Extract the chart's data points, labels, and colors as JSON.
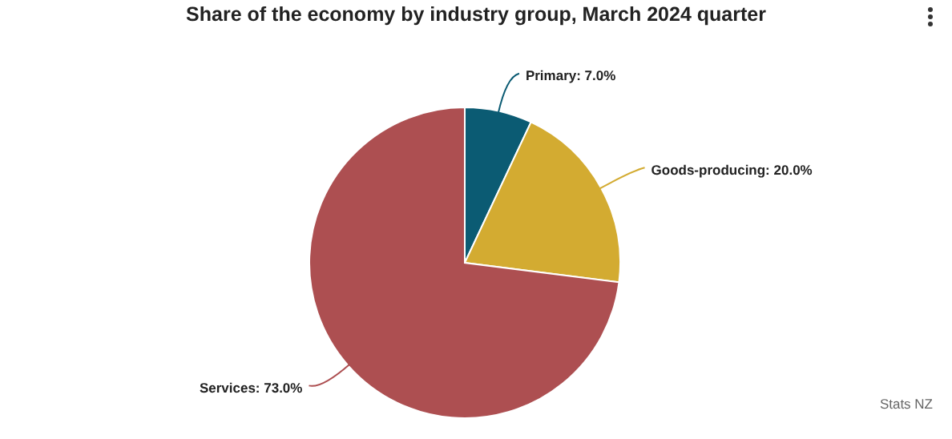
{
  "chart_data": {
    "type": "pie",
    "title": "Share of the economy by industry group, March 2024 quarter",
    "categories": [
      "Primary",
      "Goods-producing",
      "Services"
    ],
    "values": [
      7.0,
      20.0,
      73.0
    ],
    "colors": [
      "#0b5b73",
      "#d3ab31",
      "#ad4f51"
    ],
    "value_labels": [
      "7.0%",
      "20.0%",
      "73.0%"
    ],
    "annotations": [
      "Stats NZ"
    ]
  }
}
